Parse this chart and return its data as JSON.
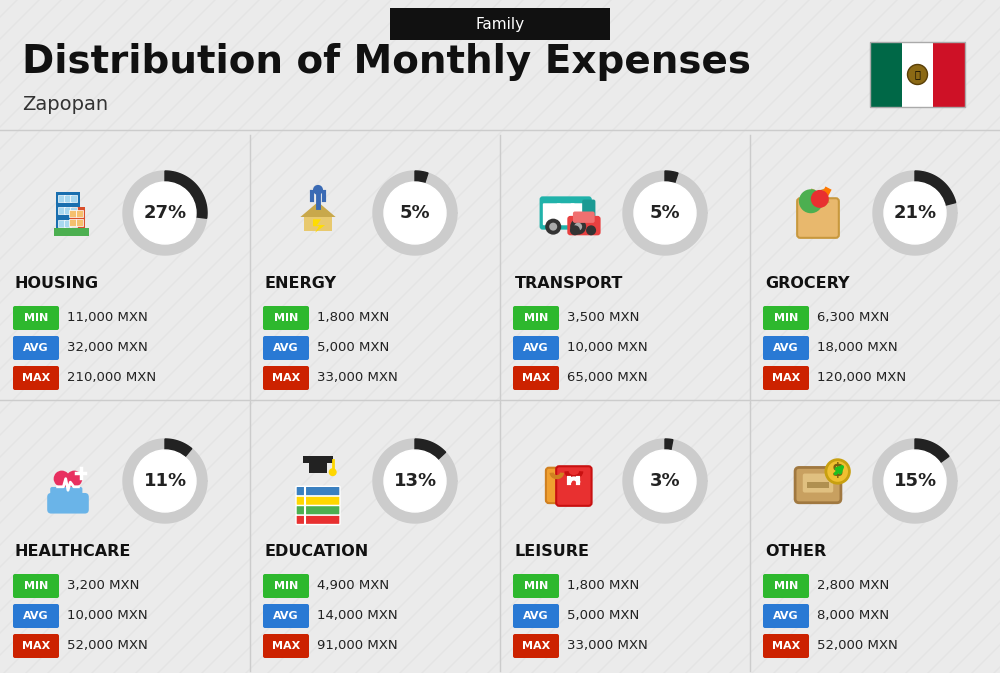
{
  "title": "Distribution of Monthly Expenses",
  "subtitle": "Family",
  "location": "Zapopan",
  "background_color": "#ebebeb",
  "categories": [
    {
      "name": "HOUSING",
      "percent": 27,
      "min_val": "11,000 MXN",
      "avg_val": "32,000 MXN",
      "max_val": "210,000 MXN",
      "row": 0,
      "col": 0
    },
    {
      "name": "ENERGY",
      "percent": 5,
      "min_val": "1,800 MXN",
      "avg_val": "5,000 MXN",
      "max_val": "33,000 MXN",
      "row": 0,
      "col": 1
    },
    {
      "name": "TRANSPORT",
      "percent": 5,
      "min_val": "3,500 MXN",
      "avg_val": "10,000 MXN",
      "max_val": "65,000 MXN",
      "row": 0,
      "col": 2
    },
    {
      "name": "GROCERY",
      "percent": 21,
      "min_val": "6,300 MXN",
      "avg_val": "18,000 MXN",
      "max_val": "120,000 MXN",
      "row": 0,
      "col": 3
    },
    {
      "name": "HEALTHCARE",
      "percent": 11,
      "min_val": "3,200 MXN",
      "avg_val": "10,000 MXN",
      "max_val": "52,000 MXN",
      "row": 1,
      "col": 0
    },
    {
      "name": "EDUCATION",
      "percent": 13,
      "min_val": "4,900 MXN",
      "avg_val": "14,000 MXN",
      "max_val": "91,000 MXN",
      "row": 1,
      "col": 1
    },
    {
      "name": "LEISURE",
      "percent": 3,
      "min_val": "1,800 MXN",
      "avg_val": "5,000 MXN",
      "max_val": "33,000 MXN",
      "row": 1,
      "col": 2
    },
    {
      "name": "OTHER",
      "percent": 15,
      "min_val": "2,800 MXN",
      "avg_val": "8,000 MXN",
      "max_val": "52,000 MXN",
      "row": 1,
      "col": 3
    }
  ],
  "label_colors": {
    "MIN": "#2eb82e",
    "AVG": "#2979d4",
    "MAX": "#cc2200"
  }
}
